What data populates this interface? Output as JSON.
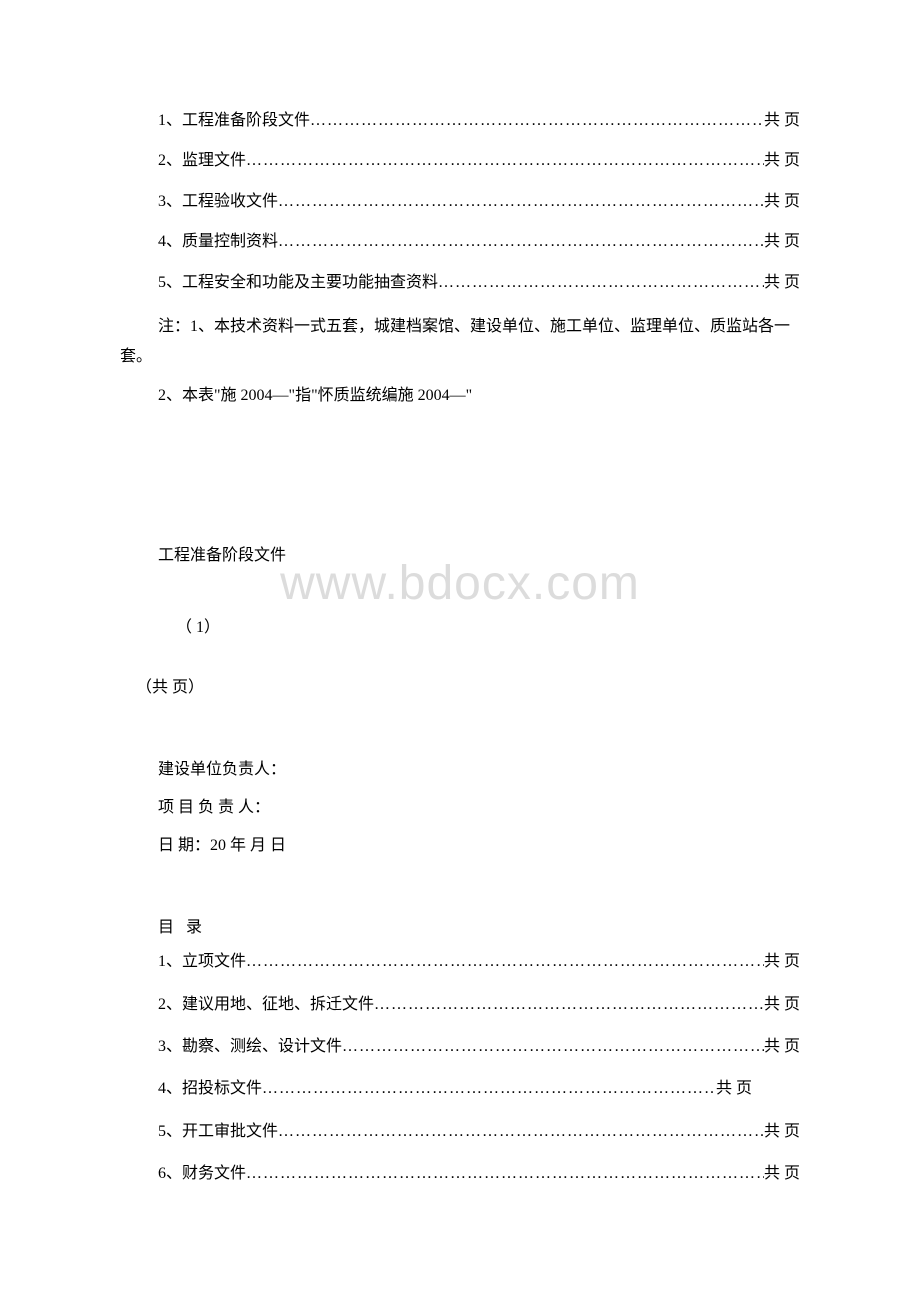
{
  "watermark": "www.bdocx.com",
  "toc1": {
    "items": [
      {
        "num": "1、",
        "label": "工程准备阶段文件",
        "suffix": "共 页"
      },
      {
        "num": "2、",
        "label": "监理文件",
        "suffix": "共 页"
      },
      {
        "num": "3、",
        "label": "工程验收文件",
        "suffix": "共 页"
      },
      {
        "num": "4、",
        "label": "质量控制资料",
        "suffix": "共 页"
      },
      {
        "num": "5、",
        "label": "工程安全和功能及主要功能抽查资料",
        "suffix": "共 页"
      }
    ]
  },
  "notes": {
    "line1": "注：1、本技术资料一式五套，城建档案馆、建设单位、施工单位、监理单位、质监站各一套。",
    "line2": "2、本表\"施 2004—\"指\"怀质监统编施 2004—\""
  },
  "section": {
    "title": "工程准备阶段文件",
    "number": "（   1）",
    "pages": "（共 页）"
  },
  "info": {
    "line1": "建设单位负责人：",
    "line2": "项 目 负 责 人：",
    "line3": "日 期：20 年 月 日"
  },
  "mulu": "目 录",
  "toc2": {
    "items": [
      {
        "num": "1、",
        "label": "立项文件",
        "suffix": "共 页"
      },
      {
        "num": "2、",
        "label": "建议用地、征地、拆迁文件",
        "suffix": "共 页"
      },
      {
        "num": "3、",
        "label": "勘察、测绘、设计文件",
        "suffix": "共 页"
      },
      {
        "num": "4、",
        "label": "招投标文件 ",
        "suffix": "共 页"
      },
      {
        "num": "5、",
        "label": "开工审批文件",
        "suffix": "共 页"
      },
      {
        "num": "6、",
        "label": "财务文件",
        "suffix": "共 页"
      }
    ]
  },
  "leader": "………………………………………………………………………………………………………………"
}
